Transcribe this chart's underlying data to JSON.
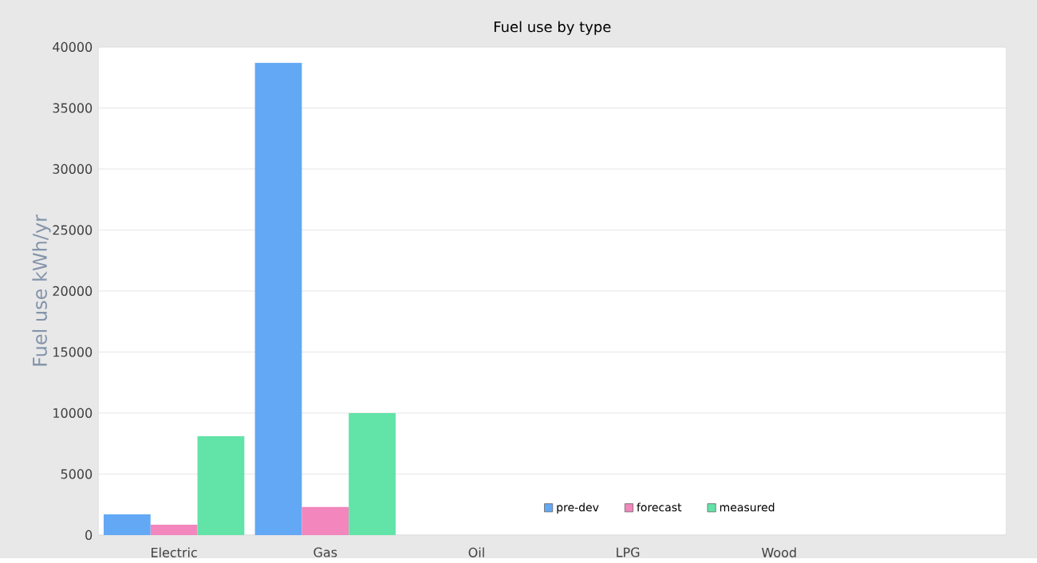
{
  "chart_data": {
    "type": "bar",
    "title": "Fuel use by type",
    "ylabel": "Fuel use  kWh/yr",
    "categories": [
      "Electric",
      "Gas",
      "Oil",
      "LPG",
      "Wood",
      null
    ],
    "series": [
      {
        "name": "pre-dev",
        "color": "#62a8f5",
        "values": [
          1700,
          38700,
          null,
          null,
          null,
          null
        ]
      },
      {
        "name": "forecast",
        "color": "#f286bd",
        "values": [
          850,
          2300,
          null,
          null,
          null,
          null
        ]
      },
      {
        "name": "measured",
        "color": "#62e3a8",
        "values": [
          8100,
          10000,
          null,
          null,
          null,
          null
        ]
      }
    ],
    "ylim": [
      0,
      40000
    ],
    "yticks": [
      0,
      5000,
      10000,
      15000,
      20000,
      25000,
      30000,
      35000,
      40000
    ],
    "grid": "y",
    "legend": "bottom"
  }
}
